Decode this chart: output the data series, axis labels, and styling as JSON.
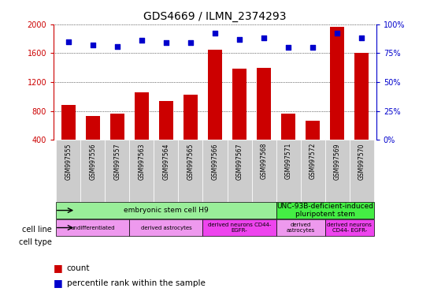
{
  "title": "GDS4669 / ILMN_2374293",
  "samples": [
    "GSM997555",
    "GSM997556",
    "GSM997557",
    "GSM997563",
    "GSM997564",
    "GSM997565",
    "GSM997566",
    "GSM997567",
    "GSM997568",
    "GSM997571",
    "GSM997572",
    "GSM997569",
    "GSM997570"
  ],
  "counts": [
    880,
    730,
    760,
    1060,
    940,
    1020,
    1650,
    1380,
    1400,
    760,
    660,
    1960,
    1600
  ],
  "percentiles": [
    85,
    82,
    81,
    86,
    84,
    84,
    92,
    87,
    88,
    80,
    80,
    92,
    88
  ],
  "ylim_left": [
    400,
    2000
  ],
  "ylim_right": [
    0,
    100
  ],
  "yticks_left": [
    400,
    800,
    1200,
    1600,
    2000
  ],
  "yticks_right": [
    0,
    25,
    50,
    75,
    100
  ],
  "bar_color": "#cc0000",
  "dot_color": "#0000cc",
  "cell_line_groups": [
    {
      "label": "embryonic stem cell H9",
      "start": 0,
      "end": 9,
      "color": "#99ee99"
    },
    {
      "label": "UNC-93B-deficient-induced\npluripotent stem",
      "start": 9,
      "end": 13,
      "color": "#44ee44"
    }
  ],
  "cell_type_groups": [
    {
      "label": "undifferentiated",
      "start": 0,
      "end": 3,
      "color": "#ee99ee"
    },
    {
      "label": "derived astrocytes",
      "start": 3,
      "end": 6,
      "color": "#ee99ee"
    },
    {
      "label": "derived neurons CD44-\nEGFR-",
      "start": 6,
      "end": 9,
      "color": "#ee44ee"
    },
    {
      "label": "derived\nastrocytes",
      "start": 9,
      "end": 11,
      "color": "#ee99ee"
    },
    {
      "label": "derived neurons\nCD44- EGFR-",
      "start": 11,
      "end": 13,
      "color": "#ee44ee"
    }
  ],
  "legend_count_color": "#cc0000",
  "legend_dot_color": "#0000cc",
  "sample_bg_color": "#cccccc",
  "grid_color": "#000000"
}
